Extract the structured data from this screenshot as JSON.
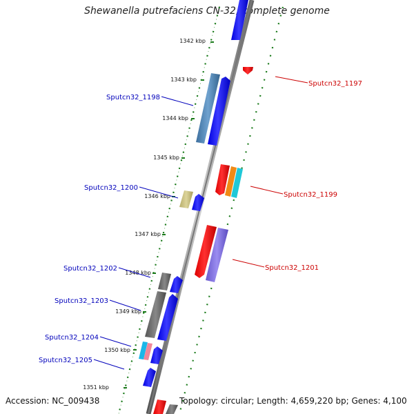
{
  "title": "Shewanella putrefaciens CN-32, complete genome",
  "footer": {
    "accession": "Accession: NC_009438",
    "topology": "Topology: circular; Length: 4,659,220 bp; Genes: 4,100"
  },
  "ticks": [
    "1342 kbp",
    "1343 kbp",
    "1344 kbp",
    "1345 kbp",
    "1346 kbp",
    "1347 kbp",
    "1348 kbp",
    "1349 kbp",
    "1350 kbp",
    "1351 kbp"
  ],
  "gene_labels": {
    "forward": [
      "Sputcn32_1197",
      "Sputcn32_1199",
      "Sputcn32_1201"
    ],
    "reverse": [
      "Sputcn32_1198",
      "Sputcn32_1200",
      "Sputcn32_1202",
      "Sputcn32_1203",
      "Sputcn32_1204",
      "Sputcn32_1205"
    ]
  },
  "colors": {
    "forward_label": "#cc0000",
    "reverse_label": "#0000bb",
    "blue_cds": "#0000ff",
    "red_cds": "#ff0000",
    "backbone": "#888888",
    "tick": "#1a7a1a"
  }
}
